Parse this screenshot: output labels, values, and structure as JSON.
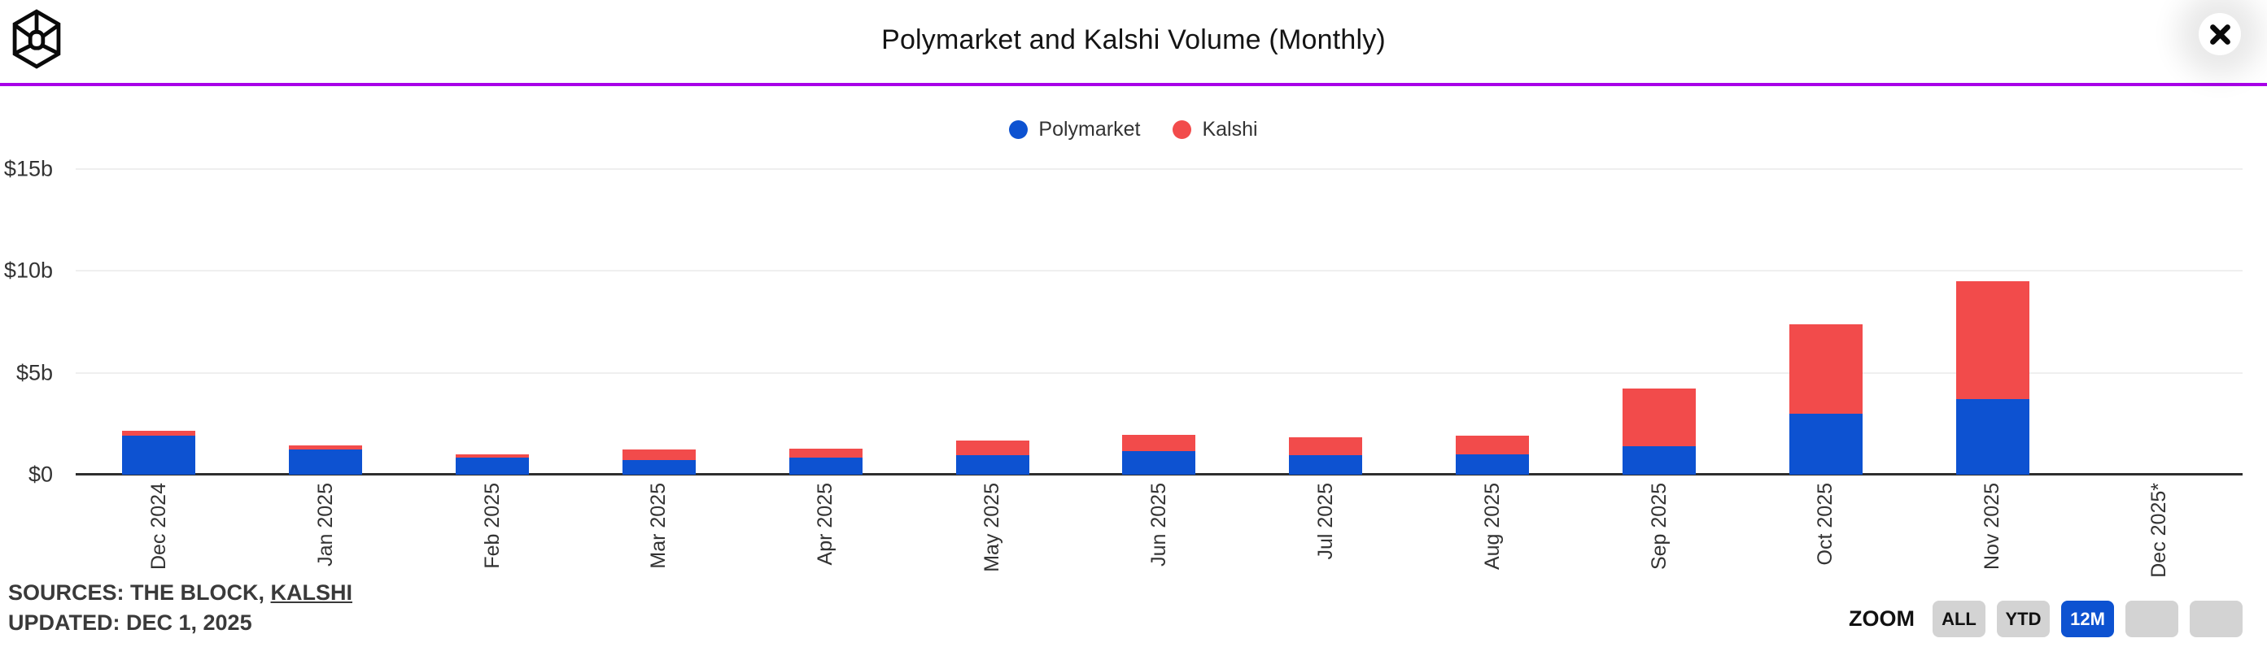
{
  "header": {
    "title": "Polymarket and Kalshi Volume (Monthly)",
    "logo": "the-block-logo",
    "close": "close"
  },
  "chart_data": {
    "type": "bar",
    "stacked": true,
    "title": "Polymarket and Kalshi Volume (Monthly)",
    "unit": "billions USD",
    "categories": [
      "Dec 2024",
      "Jan 2025",
      "Feb 2025",
      "Mar 2025",
      "Apr 2025",
      "May 2025",
      "Jun 2025",
      "Jul 2025",
      "Aug 2025",
      "Sep 2025",
      "Oct 2025",
      "Nov 2025",
      "Dec 2025*"
    ],
    "series": [
      {
        "name": "Polymarket",
        "color": "#0d52d1",
        "values": [
          1.9,
          1.25,
          0.85,
          0.7,
          0.85,
          0.97,
          1.16,
          0.95,
          1.0,
          1.4,
          3.0,
          3.7,
          0
        ]
      },
      {
        "name": "Kalshi",
        "color": "#f24b4b",
        "values": [
          0.25,
          0.2,
          0.17,
          0.5,
          0.45,
          0.73,
          0.8,
          0.88,
          0.9,
          2.85,
          4.4,
          5.8,
          0
        ]
      }
    ],
    "y_ticks": [
      {
        "value": 0,
        "label": "$0"
      },
      {
        "value": 5,
        "label": "$5b"
      },
      {
        "value": 10,
        "label": "$10b"
      },
      {
        "value": 15,
        "label": "$15b"
      }
    ],
    "ylim": [
      0,
      15.6
    ],
    "grid": true,
    "legend_position": "top"
  },
  "footer": {
    "sources_prefix": "SOURCES: THE BLOCK, ",
    "sources_link": "KALSHI",
    "updated": "UPDATED: DEC 1, 2025"
  },
  "zoom_controls": {
    "label": "ZOOM",
    "buttons": [
      {
        "label": "ALL",
        "active": false
      },
      {
        "label": "YTD",
        "active": false
      },
      {
        "label": "12M",
        "active": true
      },
      {
        "label": "",
        "active": false
      },
      {
        "label": "",
        "active": false
      }
    ]
  },
  "colors": {
    "accent_line": "#A800E8",
    "polymarket_blue": "#0d52d1",
    "kalshi_red": "#f24b4b",
    "gridline": "#efefef",
    "axis": "#2e2e2e"
  }
}
